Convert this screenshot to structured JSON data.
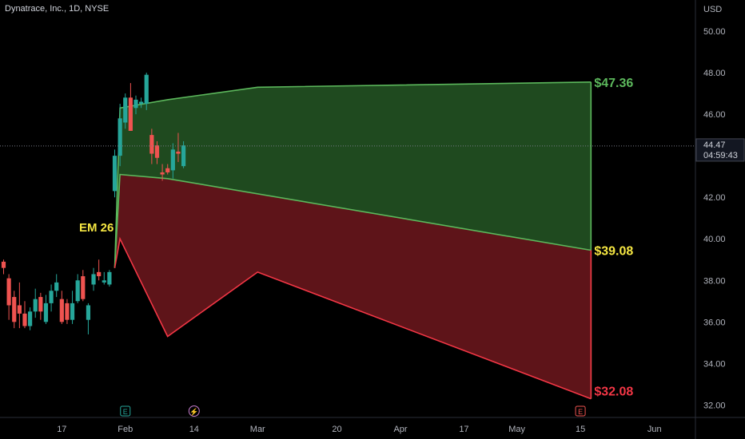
{
  "header": {
    "symbol_title": "Dynatrace, Inc., 1D, NYSE"
  },
  "price_scale": {
    "currency": "USD"
  },
  "last_price": {
    "value": "44.47",
    "countdown": "04:59:43"
  },
  "annotations": {
    "em_label": "EM 26",
    "upper_label": "$47.36",
    "mid_label": "$39.08",
    "lower_label": "$32.08"
  },
  "event_markers": [
    {
      "icon": "earnings-icon",
      "glyph": "E",
      "date_index": 23
    },
    {
      "icon": "dividend-icon",
      "glyph": "⚡",
      "date_index": 36
    },
    {
      "icon": "earnings-icon",
      "glyph": "E",
      "date_index": 109
    }
  ],
  "colors": {
    "background": "#000000",
    "up": "#26a69a",
    "down": "#ef5350",
    "upper_zone_fill": "#1f4a1f",
    "upper_zone_stroke": "#5cb85c",
    "lower_zone_fill": "#5e1419",
    "lower_zone_stroke": "#f23645",
    "em_label": "#f5e642",
    "mid_label": "#f5e642",
    "upper_label": "#5cb85c",
    "lower_label": "#f23645",
    "axis_text": "#b2b5be",
    "last_price_line": "#787b86"
  },
  "chart_data": {
    "type": "candlestick",
    "title": "Dynatrace, Inc., 1D, NYSE",
    "ylim": [
      31.4,
      51.5
    ],
    "y_ticks": [
      "50.00",
      "48.00",
      "46.00",
      "44.00",
      "42.00",
      "40.00",
      "38.00",
      "36.00",
      "34.00",
      "32.00"
    ],
    "x_ticks": [
      {
        "label": "17",
        "index": 11
      },
      {
        "label": "Feb",
        "index": 23
      },
      {
        "label": "14",
        "index": 36
      },
      {
        "label": "Mar",
        "index": 48
      },
      {
        "label": "20",
        "index": 63
      },
      {
        "label": "Apr",
        "index": 75
      },
      {
        "label": "17",
        "index": 87
      },
      {
        "label": "May",
        "index": 97
      },
      {
        "label": "15",
        "index": 109
      },
      {
        "label": "Jun",
        "index": 123
      }
    ],
    "candles": [
      {
        "i": 0,
        "o": 38.9,
        "h": 39.0,
        "l": 38.3,
        "c": 38.6
      },
      {
        "i": 1,
        "o": 38.1,
        "h": 38.3,
        "l": 36.1,
        "c": 36.8
      },
      {
        "i": 2,
        "o": 37.2,
        "h": 37.5,
        "l": 35.7,
        "c": 36.0
      },
      {
        "i": 3,
        "o": 36.8,
        "h": 37.9,
        "l": 35.7,
        "c": 36.4
      },
      {
        "i": 4,
        "o": 36.4,
        "h": 37.0,
        "l": 35.7,
        "c": 35.8
      },
      {
        "i": 5,
        "o": 35.8,
        "h": 36.7,
        "l": 35.6,
        "c": 36.5
      },
      {
        "i": 6,
        "o": 36.5,
        "h": 37.6,
        "l": 36.2,
        "c": 37.1
      },
      {
        "i": 7,
        "o": 37.2,
        "h": 37.4,
        "l": 36.1,
        "c": 36.5
      },
      {
        "i": 8,
        "o": 36.0,
        "h": 37.3,
        "l": 35.9,
        "c": 36.9
      },
      {
        "i": 9,
        "o": 36.9,
        "h": 37.8,
        "l": 36.5,
        "c": 37.5
      },
      {
        "i": 10,
        "o": 37.5,
        "h": 38.3,
        "l": 37.2,
        "c": 37.9
      },
      {
        "i": 11,
        "o": 37.1,
        "h": 37.5,
        "l": 35.9,
        "c": 36.0
      },
      {
        "i": 12,
        "o": 36.9,
        "h": 37.1,
        "l": 35.9,
        "c": 36.1
      },
      {
        "i": 13,
        "o": 36.1,
        "h": 37.5,
        "l": 35.9,
        "c": 36.9
      },
      {
        "i": 14,
        "o": 37.0,
        "h": 38.3,
        "l": 36.9,
        "c": 38.0
      },
      {
        "i": 15,
        "o": 38.2,
        "h": 38.5,
        "l": 37.0,
        "c": 37.1
      },
      {
        "i": 16,
        "o": 36.1,
        "h": 36.9,
        "l": 35.4,
        "c": 36.8
      },
      {
        "i": 17,
        "o": 37.8,
        "h": 38.6,
        "l": 37.5,
        "c": 38.3
      },
      {
        "i": 18,
        "o": 38.4,
        "h": 39.0,
        "l": 38.0,
        "c": 38.2
      },
      {
        "i": 19,
        "o": 37.9,
        "h": 38.4,
        "l": 37.8,
        "c": 38.0
      },
      {
        "i": 20,
        "o": 37.8,
        "h": 38.5,
        "l": 37.7,
        "c": 38.4
      },
      {
        "i": 21,
        "o": 42.3,
        "h": 44.3,
        "l": 42.0,
        "c": 44.0
      },
      {
        "i": 22,
        "o": 44.0,
        "h": 46.5,
        "l": 43.5,
        "c": 45.8
      },
      {
        "i": 23,
        "o": 45.6,
        "h": 47.0,
        "l": 45.3,
        "c": 46.8
      },
      {
        "i": 24,
        "o": 46.8,
        "h": 47.5,
        "l": 45.2,
        "c": 45.2
      },
      {
        "i": 25,
        "o": 46.3,
        "h": 46.9,
        "l": 46.0,
        "c": 46.7
      },
      {
        "i": 26,
        "o": 46.5,
        "h": 46.8,
        "l": 46.3,
        "c": 46.6
      },
      {
        "i": 27,
        "o": 46.5,
        "h": 48.0,
        "l": 46.2,
        "c": 47.9
      },
      {
        "i": 28,
        "o": 45.0,
        "h": 45.3,
        "l": 43.6,
        "c": 44.1
      },
      {
        "i": 29,
        "o": 44.5,
        "h": 44.7,
        "l": 43.6,
        "c": 43.9
      },
      {
        "i": 30,
        "o": 43.2,
        "h": 43.6,
        "l": 42.8,
        "c": 43.1
      },
      {
        "i": 31,
        "o": 43.4,
        "h": 43.6,
        "l": 43.1,
        "c": 43.2
      },
      {
        "i": 32,
        "o": 43.3,
        "h": 44.6,
        "l": 42.9,
        "c": 44.3
      },
      {
        "i": 33,
        "o": 44.2,
        "h": 45.1,
        "l": 43.7,
        "c": 44.1
      },
      {
        "i": 34,
        "o": 43.5,
        "h": 44.7,
        "l": 43.4,
        "c": 44.5
      }
    ],
    "expected_move": {
      "label": "EM 26",
      "upper": {
        "label": "$47.36",
        "points": [
          [
            21,
            38.6
          ],
          [
            22,
            46.3
          ],
          [
            31,
            46.7
          ],
          [
            48,
            47.3
          ],
          [
            111,
            47.55
          ]
        ]
      },
      "mid": {
        "label": "$39.08",
        "points": [
          [
            22,
            43.1
          ],
          [
            31,
            42.9
          ],
          [
            111,
            39.45
          ]
        ]
      },
      "lower": {
        "label": "$32.08",
        "points": [
          [
            22,
            40.0
          ],
          [
            31,
            35.3
          ],
          [
            48,
            38.4
          ],
          [
            111,
            32.3
          ]
        ]
      },
      "start": [
        21,
        38.6
      ]
    },
    "last_price": 44.47
  }
}
